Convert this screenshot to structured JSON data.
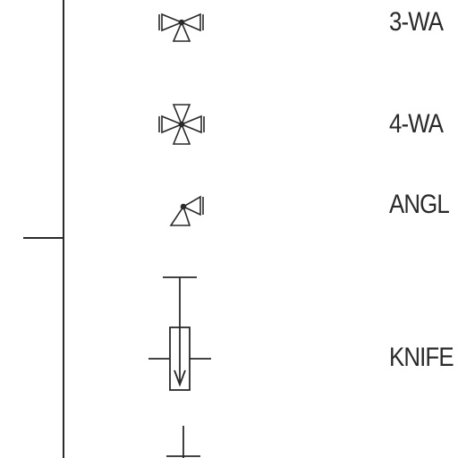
{
  "legend": {
    "labels": {
      "three_way": "3-WA",
      "four_way": "4-WA",
      "angle": "ANGL",
      "knife": "KNIFE"
    }
  },
  "colors": {
    "ink": "#2a2a2a",
    "background": "#ffffff"
  },
  "icons": [
    "three-way-valve-icon",
    "four-way-valve-icon",
    "angle-valve-icon",
    "knife-valve-icon",
    "partial-valve-icon"
  ]
}
